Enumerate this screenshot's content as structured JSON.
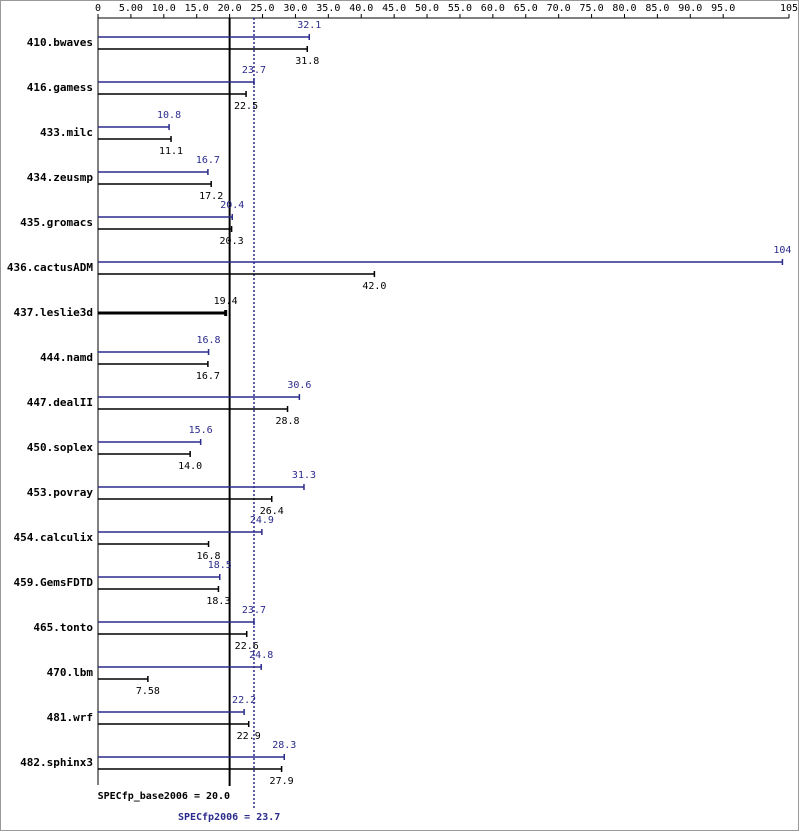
{
  "chart_data": {
    "type": "bar",
    "orientation": "horizontal",
    "categories": [
      "410.bwaves",
      "416.gamess",
      "433.milc",
      "434.zeusmp",
      "435.gromacs",
      "436.cactusADM",
      "437.leslie3d",
      "444.namd",
      "447.dealII",
      "450.soplex",
      "453.povray",
      "454.calculix",
      "459.GemsFDTD",
      "465.tonto",
      "470.lbm",
      "481.wrf",
      "482.sphinx3"
    ],
    "series": [
      {
        "name": "peak",
        "color": "#2b2b8c",
        "values": [
          32.1,
          23.7,
          10.8,
          16.7,
          20.4,
          104,
          null,
          16.8,
          30.6,
          15.6,
          31.3,
          24.9,
          18.5,
          23.7,
          24.8,
          22.2,
          28.3
        ]
      },
      {
        "name": "base",
        "color": "#000000",
        "values": [
          31.8,
          22.5,
          11.1,
          17.2,
          20.3,
          42,
          19.4,
          16.7,
          28.8,
          14,
          26.4,
          16.8,
          18.3,
          22.6,
          7.58,
          22.9,
          27.9
        ],
        "value_labels": [
          "31.8",
          "22.5",
          "11.1",
          "17.2",
          "20.3",
          "42.0",
          "19.4",
          "16.7",
          "28.8",
          "14.0",
          "26.4",
          "16.8",
          "18.3",
          "22.6",
          "7.58",
          "22.9",
          "27.9"
        ]
      }
    ],
    "xlim": [
      0,
      105
    ],
    "xticks": [
      0,
      {
        "value": 5,
        "label": "5.00"
      },
      {
        "value": 10,
        "label": "10.0"
      },
      {
        "value": 15,
        "label": "15.0"
      },
      {
        "value": 20,
        "label": "20.0"
      },
      {
        "value": 25,
        "label": "25.0"
      },
      {
        "value": 30,
        "label": "30.0"
      },
      {
        "value": 35,
        "label": "35.0"
      },
      {
        "value": 40,
        "label": "40.0"
      },
      {
        "value": 45,
        "label": "45.0"
      },
      {
        "value": 50,
        "label": "50.0"
      },
      {
        "value": 55,
        "label": "55.0"
      },
      {
        "value": 60,
        "label": "60.0"
      },
      {
        "value": 65,
        "label": "65.0"
      },
      {
        "value": 70,
        "label": "70.0"
      },
      {
        "value": 75,
        "label": "75.0"
      },
      {
        "value": 80,
        "label": "80.0"
      },
      {
        "value": 85,
        "label": "85.0"
      },
      {
        "value": 90,
        "label": "90.0"
      },
      {
        "value": 95,
        "label": "95.0"
      },
      105
    ],
    "reference_lines": [
      {
        "label": "SPECfp_base2006 = 20.0",
        "value": 20,
        "color": "#000000"
      },
      {
        "label": "SPECfp2006 = 23.7",
        "value": 23.7,
        "color": "#2b2b8c"
      }
    ]
  }
}
